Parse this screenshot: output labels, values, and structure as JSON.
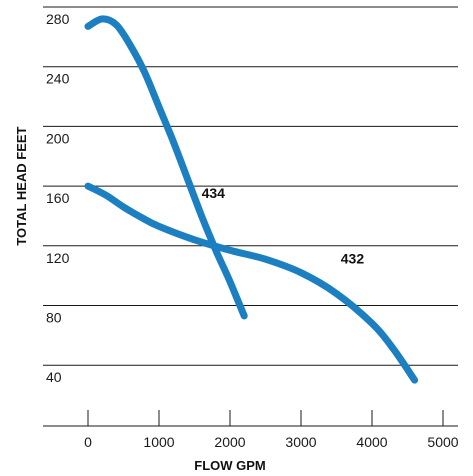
{
  "chart_data": {
    "type": "line",
    "xlabel": "FLOW GPM",
    "ylabel": "TOTAL HEAD FEET",
    "xlim": [
      0,
      5000
    ],
    "ylim": [
      20,
      290
    ],
    "x_ticks": [
      0,
      1000,
      2000,
      3000,
      4000,
      5000
    ],
    "y_ticks": [
      280,
      240,
      200,
      160,
      120,
      80,
      40
    ],
    "grid": "horizontal",
    "series": [
      {
        "name": "434",
        "color": "#1b7fc2",
        "points": [
          [
            0,
            267
          ],
          [
            200,
            272
          ],
          [
            400,
            268
          ],
          [
            600,
            254
          ],
          [
            800,
            236
          ],
          [
            1000,
            213
          ],
          [
            1200,
            190
          ],
          [
            1400,
            165
          ],
          [
            1600,
            140
          ],
          [
            1800,
            117
          ],
          [
            2000,
            96
          ],
          [
            2200,
            73
          ]
        ]
      },
      {
        "name": "432",
        "color": "#1b7fc2",
        "points": [
          [
            0,
            160
          ],
          [
            250,
            154
          ],
          [
            500,
            146
          ],
          [
            750,
            139
          ],
          [
            1000,
            133
          ],
          [
            1500,
            124
          ],
          [
            2000,
            117
          ],
          [
            2500,
            111
          ],
          [
            3000,
            102
          ],
          [
            3500,
            88
          ],
          [
            4000,
            68
          ],
          [
            4300,
            51
          ],
          [
            4600,
            30
          ]
        ]
      }
    ]
  }
}
